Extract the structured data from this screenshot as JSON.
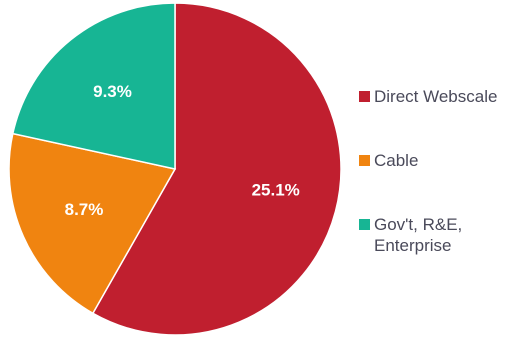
{
  "chart_data": {
    "type": "pie",
    "slices": [
      {
        "name": "Direct Webscale",
        "label": "25.1%",
        "color": "#c01f2f",
        "fraction": 0.6004
      },
      {
        "name": "Cable",
        "label": "8.7%",
        "color": "#f08410",
        "fraction": 0.2081
      },
      {
        "name": "Gov't, R&E,\nEnterprise",
        "label": "9.3%",
        "color": "#17b594",
        "fraction": 0.2225
      }
    ],
    "legend_position": "right"
  }
}
